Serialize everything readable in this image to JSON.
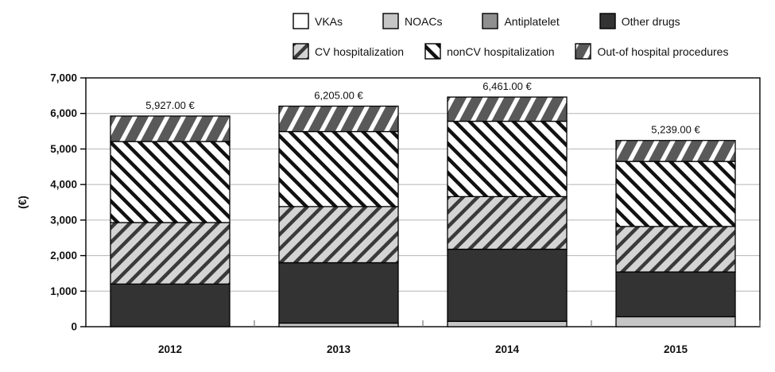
{
  "chart_data": {
    "type": "bar",
    "stacked": true,
    "title": "",
    "xlabel": "",
    "ylabel": "(€)",
    "ylim": [
      0,
      7000
    ],
    "ytick_step": 1000,
    "yticks": [
      "0",
      "1,000",
      "2,000",
      "3,000",
      "4,000",
      "5,000",
      "6,000",
      "7,000"
    ],
    "grid": true,
    "legend_position": "top",
    "categories": [
      "2012",
      "2013",
      "2014",
      "2015"
    ],
    "total_labels": [
      "5,927.00 €",
      "6,205.00 €",
      "6,461.00 €",
      "5,239.00 €"
    ],
    "totals": [
      5927,
      6205,
      6461,
      5239
    ],
    "series": [
      {
        "name": "VKAs",
        "values": [
          0,
          0,
          0,
          0
        ],
        "bg": "#ffffff",
        "stripe": null,
        "angle": 0,
        "stripe_width": 0,
        "period": 0
      },
      {
        "name": "NOACs",
        "values": [
          0,
          100,
          150,
          280
        ],
        "bg": "#c6c6c6",
        "stripe": null,
        "angle": 0,
        "stripe_width": 0,
        "period": 0
      },
      {
        "name": "Antiplatelet",
        "values": [
          0,
          0,
          0,
          0
        ],
        "bg": "#8f8f8f",
        "stripe": null,
        "angle": 0,
        "stripe_width": 0,
        "period": 0
      },
      {
        "name": "Other drugs",
        "values": [
          1200,
          1700,
          2030,
          1260
        ],
        "bg": "#333333",
        "stripe": null,
        "angle": 0,
        "stripe_width": 0,
        "period": 0
      },
      {
        "name": "CV hospitalization",
        "values": [
          1730,
          1580,
          1480,
          1280
        ],
        "bg": "#d4d4d4",
        "stripe": "#3a3a3a",
        "angle": -45,
        "stripe_width": 4.5,
        "period": 13
      },
      {
        "name": "nonCV hospitalization",
        "values": [
          2280,
          2110,
          2120,
          1830
        ],
        "bg": "#ffffff",
        "stripe": "#111111",
        "angle": 45,
        "stripe_width": 4.5,
        "period": 13
      },
      {
        "name": "Out-of hospital procedures",
        "values": [
          717,
          715,
          681,
          589
        ],
        "bg": "#595959",
        "stripe": "#ffffff",
        "angle": -62,
        "stripe_width": 5.5,
        "period": 18
      }
    ],
    "legend_rows": [
      [
        "VKAs",
        "NOACs",
        "Antiplatelet",
        "Other drugs"
      ],
      [
        "CV hospitalization",
        "nonCV hospitalization",
        "Out-of hospital procedures"
      ]
    ]
  },
  "colors": {
    "axis": "#000000",
    "grid": "#b4b4b4",
    "bar_border": "#000000",
    "text": "#111111"
  }
}
